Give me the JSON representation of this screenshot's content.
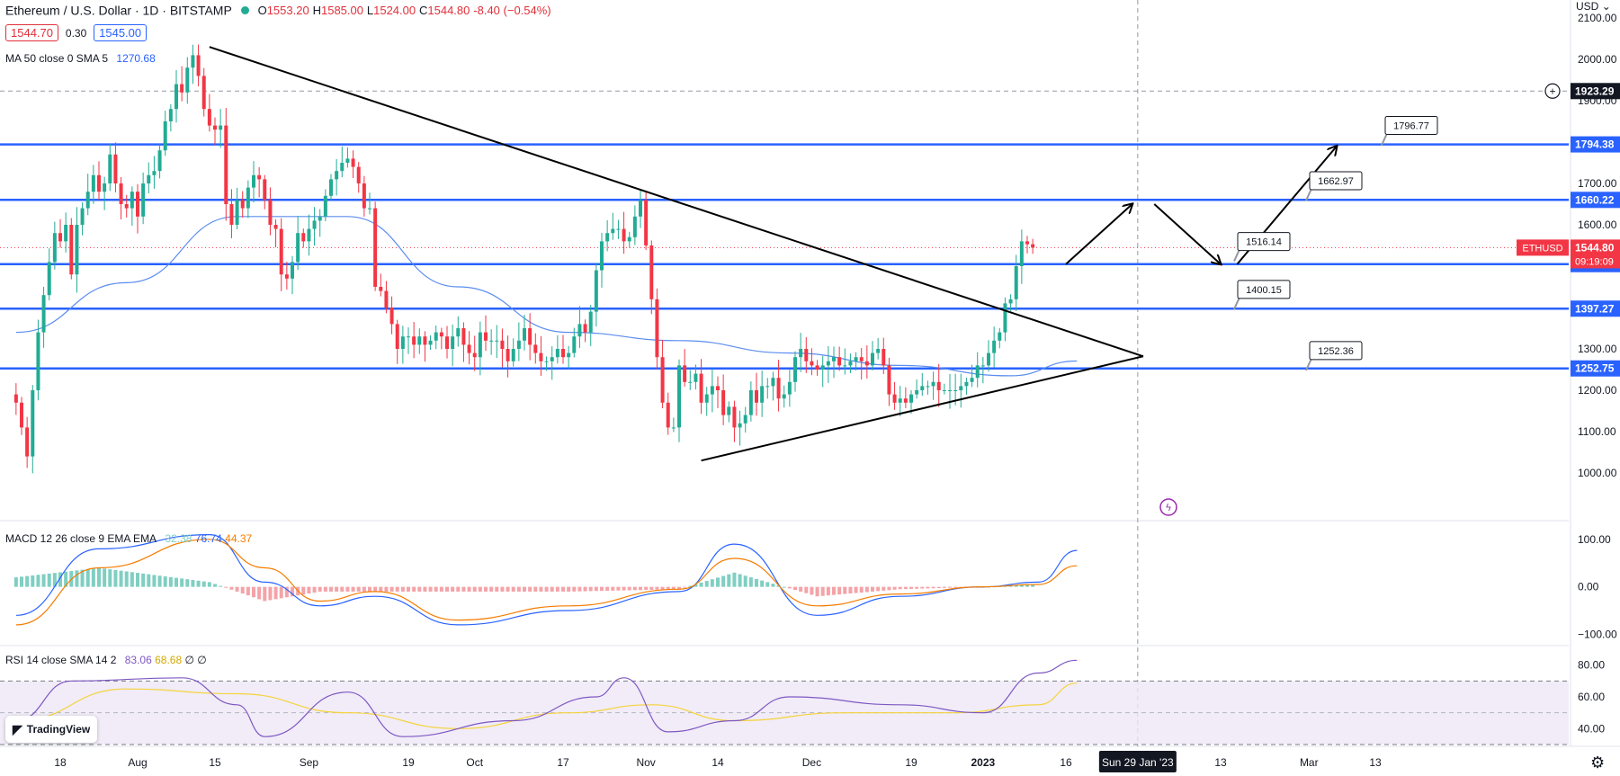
{
  "header": {
    "symbol_title": "Ethereum / U.S. Dollar · 1D · BITSTAMP",
    "ohlc": {
      "o_label": "O",
      "o": "1553.20",
      "h_label": "H",
      "h": "1585.00",
      "l_label": "L",
      "l": "1524.00",
      "c_label": "C",
      "c": "1544.80",
      "change": "-8.40 (−0.54%)"
    },
    "bid": "1544.70",
    "spread": "0.30",
    "ask": "1545.00",
    "ma_legend": {
      "label": "MA 50 close 0 SMA 5",
      "value": "1270.68"
    }
  },
  "macd_legend": {
    "label": "MACD 12 26 close 9 EMA EMA",
    "hist": "32.38",
    "macd": "76.74",
    "signal": "44.37"
  },
  "rsi_legend": {
    "label": "RSI 14 close SMA 14 2",
    "rsi": "83.06",
    "sma": "68.68",
    "extra": "∅ ∅"
  },
  "branding": {
    "logo_text": "TradingView"
  },
  "currency_menu": "USD",
  "colors": {
    "up": "#22ab94",
    "down": "#f23645",
    "level": "#2962ff",
    "ma": "#5b8def",
    "macd": "#2962ff",
    "signal": "#f57c00",
    "rsi": "#7e57c2",
    "rsi_sma": "#f5d33b"
  },
  "chart_data": {
    "type": "candlestick",
    "price_axis": {
      "ticks": [
        "2100.00",
        "2000.00",
        "1900.00",
        "1800.00",
        "1700.00",
        "1600.00",
        "1500.00",
        "1400.00",
        "1300.00",
        "1200.00",
        "1100.00",
        "1000.00"
      ],
      "ylim": [
        950,
        2120
      ]
    },
    "time_axis": {
      "ticks": [
        {
          "label": "18",
          "date": "2022-07-18"
        },
        {
          "label": "Aug",
          "date": "2022-08-01"
        },
        {
          "label": "15",
          "date": "2022-08-15"
        },
        {
          "label": "Sep",
          "date": "2022-09-01"
        },
        {
          "label": "19",
          "date": "2022-09-19"
        },
        {
          "label": "Oct",
          "date": "2022-10-01"
        },
        {
          "label": "17",
          "date": "2022-10-17"
        },
        {
          "label": "Nov",
          "date": "2022-11-01"
        },
        {
          "label": "14",
          "date": "2022-11-14"
        },
        {
          "label": "Dec",
          "date": "2022-12-01"
        },
        {
          "label": "19",
          "date": "2022-12-19"
        },
        {
          "label": "2023",
          "date": "2023-01-01"
        },
        {
          "label": "16",
          "date": "2023-01-16"
        },
        {
          "label": "13",
          "date": "2023-02-13"
        },
        {
          "label": "Mar",
          "date": "2023-03-01"
        },
        {
          "label": "13",
          "date": "2023-03-13"
        }
      ],
      "crosshair_label": "Sun 29 Jan '23",
      "crosshair_date": "2023-01-29"
    },
    "start_date": "2022-07-10",
    "closes": [
      1170,
      1110,
      1040,
      1200,
      1340,
      1430,
      1510,
      1580,
      1560,
      1600,
      1480,
      1600,
      1640,
      1680,
      1720,
      1680,
      1700,
      1770,
      1700,
      1650,
      1640,
      1680,
      1620,
      1700,
      1720,
      1730,
      1780,
      1850,
      1880,
      1940,
      1920,
      1980,
      2010,
      1960,
      1880,
      1840,
      1830,
      1840,
      1650,
      1600,
      1660,
      1640,
      1690,
      1720,
      1710,
      1660,
      1600,
      1590,
      1480,
      1470,
      1510,
      1580,
      1560,
      1590,
      1610,
      1620,
      1670,
      1710,
      1730,
      1750,
      1760,
      1740,
      1700,
      1640,
      1640,
      1450,
      1440,
      1400,
      1360,
      1300,
      1330,
      1330,
      1310,
      1330,
      1310,
      1320,
      1340,
      1330,
      1300,
      1330,
      1350,
      1310,
      1290,
      1280,
      1340,
      1320,
      1320,
      1320,
      1300,
      1270,
      1300,
      1320,
      1350,
      1310,
      1290,
      1270,
      1270,
      1280,
      1300,
      1280,
      1290,
      1330,
      1360,
      1340,
      1390,
      1490,
      1560,
      1580,
      1590,
      1590,
      1560,
      1570,
      1620,
      1660,
      1550,
      1420,
      1280,
      1170,
      1110,
      1110,
      1260,
      1220,
      1220,
      1240,
      1170,
      1190,
      1210,
      1200,
      1140,
      1160,
      1110,
      1120,
      1140,
      1200,
      1170,
      1210,
      1210,
      1230,
      1180,
      1190,
      1220,
      1280,
      1300,
      1270,
      1260,
      1250,
      1260,
      1270,
      1280,
      1260,
      1260,
      1270,
      1280,
      1270,
      1260,
      1290,
      1300,
      1260,
      1190,
      1170,
      1180,
      1170,
      1190,
      1200,
      1210,
      1210,
      1220,
      1200,
      1200,
      1200,
      1200,
      1210,
      1220,
      1230,
      1260,
      1260,
      1290,
      1320,
      1340,
      1410,
      1420,
      1500,
      1560,
      1553,
      1544.8
    ],
    "ma50": [
      [
        0,
        1340
      ],
      [
        20,
        1460
      ],
      [
        40,
        1620
      ],
      [
        60,
        1620
      ],
      [
        80,
        1450
      ],
      [
        100,
        1340
      ],
      [
        120,
        1320
      ],
      [
        140,
        1290
      ],
      [
        160,
        1260
      ],
      [
        180,
        1235
      ],
      [
        192,
        1270.68
      ]
    ],
    "levels": [
      1794.38,
      1660.22,
      1504.93,
      1397.27,
      1252.75
    ],
    "level_labels": [
      "1794.38",
      "1660.22",
      "1504.93",
      "1397.27",
      "1252.75"
    ],
    "dashed_level": 1923.29,
    "dashed_level_label": "1923.29",
    "current_price": 1544.8,
    "current_price_label": "1544.80",
    "current_symbol": "ETHUSD",
    "countdown": "09:19:09",
    "callouts": [
      "1796.77",
      "1662.97",
      "1516.14",
      "1400.15",
      "1252.36"
    ],
    "callout_prices": [
      1796.77,
      1662.97,
      1516.14,
      1400.15,
      1252.36
    ],
    "trendlines": [
      {
        "name": "upper-triangle-line",
        "from": [
          "2022-08-14",
          2030
        ],
        "to": [
          "2023-01-30",
          1282
        ]
      },
      {
        "name": "lower-triangle-line",
        "from": [
          "2022-11-11",
          1030
        ],
        "to": [
          "2023-01-30",
          1282
        ]
      }
    ],
    "projection_path": [
      [
        "2023-01-16",
        1505
      ],
      [
        "2023-01-28",
        1650
      ],
      [
        "2023-02-01",
        1650
      ],
      [
        "2023-02-13",
        1504.93
      ],
      [
        "2023-02-16",
        1504.93
      ],
      [
        "2023-03-06",
        1790
      ]
    ],
    "macd": {
      "ticks": [
        "100.00",
        "0.00",
        "−100.00"
      ],
      "ylim": [
        -120,
        130
      ],
      "macd_line": [
        [
          0,
          -60
        ],
        [
          15,
          80
        ],
        [
          35,
          110
        ],
        [
          45,
          10
        ],
        [
          55,
          -40
        ],
        [
          65,
          -20
        ],
        [
          80,
          -80
        ],
        [
          100,
          -50
        ],
        [
          120,
          -10
        ],
        [
          130,
          90
        ],
        [
          145,
          -60
        ],
        [
          160,
          -20
        ],
        [
          175,
          0
        ],
        [
          185,
          10
        ],
        [
          192,
          76.74
        ]
      ],
      "signal_line": [
        [
          0,
          -80
        ],
        [
          15,
          40
        ],
        [
          35,
          100
        ],
        [
          45,
          40
        ],
        [
          55,
          -30
        ],
        [
          65,
          -10
        ],
        [
          80,
          -70
        ],
        [
          100,
          -40
        ],
        [
          120,
          -5
        ],
        [
          130,
          60
        ],
        [
          145,
          -40
        ],
        [
          160,
          -15
        ],
        [
          175,
          0
        ],
        [
          185,
          5
        ],
        [
          192,
          44.37
        ]
      ]
    },
    "rsi": {
      "ticks": [
        "80.00",
        "60.00",
        "40.00"
      ],
      "ylim": [
        30,
        90
      ],
      "band": [
        30,
        70
      ],
      "rsi_line": [
        [
          0,
          45
        ],
        [
          10,
          70
        ],
        [
          30,
          72
        ],
        [
          40,
          55
        ],
        [
          45,
          35
        ],
        [
          60,
          63
        ],
        [
          70,
          35
        ],
        [
          90,
          45
        ],
        [
          105,
          60
        ],
        [
          110,
          72
        ],
        [
          118,
          38
        ],
        [
          130,
          45
        ],
        [
          140,
          60
        ],
        [
          160,
          55
        ],
        [
          175,
          50
        ],
        [
          185,
          75
        ],
        [
          192,
          83.06
        ]
      ],
      "sma_line": [
        [
          0,
          45
        ],
        [
          20,
          65
        ],
        [
          40,
          62
        ],
        [
          60,
          50
        ],
        [
          80,
          40
        ],
        [
          100,
          50
        ],
        [
          115,
          55
        ],
        [
          130,
          45
        ],
        [
          150,
          50
        ],
        [
          170,
          50
        ],
        [
          185,
          55
        ],
        [
          192,
          68.68
        ]
      ]
    }
  }
}
